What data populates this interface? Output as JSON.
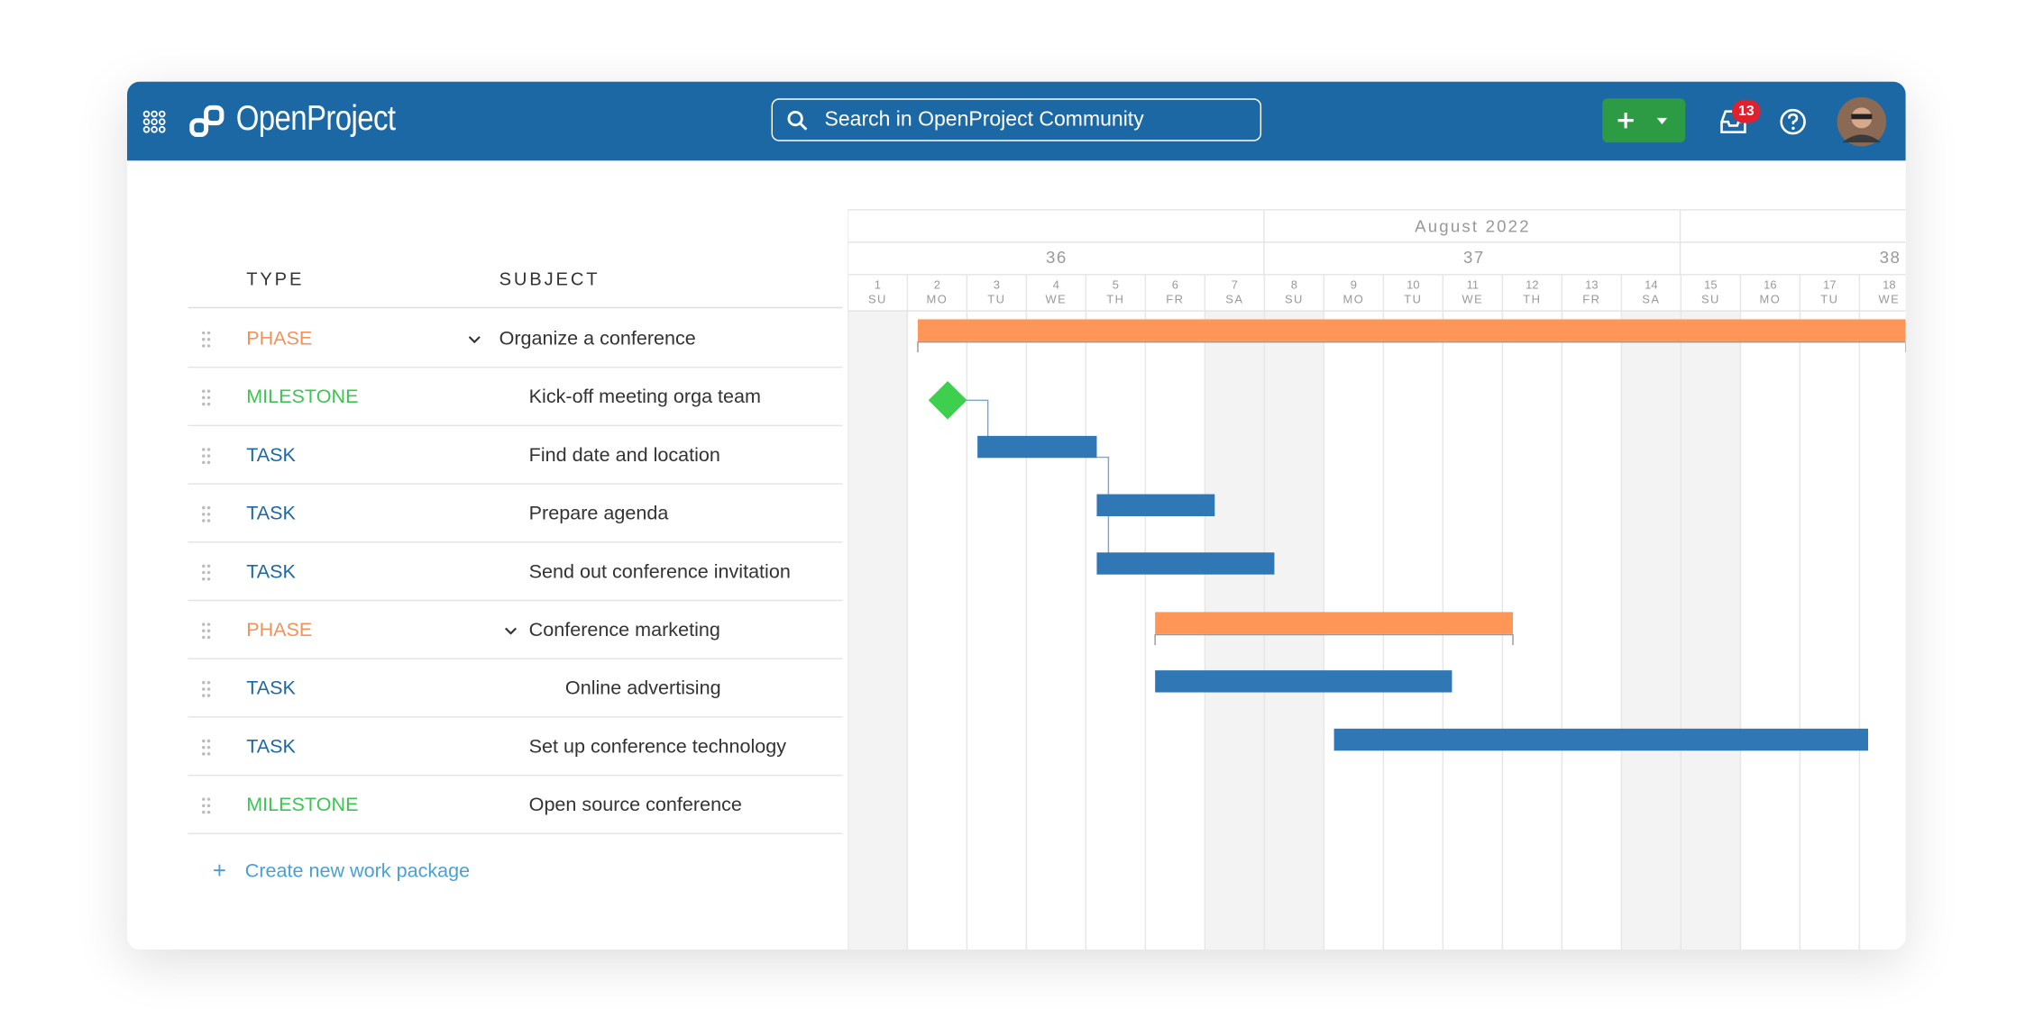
{
  "header": {
    "brand": "OpenProject",
    "search_placeholder": "Search in OpenProject Community",
    "notification_count": "13"
  },
  "table": {
    "columns": [
      "TYPE",
      "SUBJECT"
    ],
    "rows": [
      [
        "PHASE",
        "Organize a conference"
      ],
      [
        "MILESTONE",
        "Kick-off meeting orga team"
      ],
      [
        "TASK",
        "Find date and location"
      ],
      [
        "TASK",
        "Prepare agenda"
      ],
      [
        "TASK",
        "Send out conference invitation"
      ],
      [
        "PHASE",
        "Conference marketing"
      ],
      [
        "TASK",
        "Online advertising"
      ],
      [
        "TASK",
        "Set up conference technology"
      ],
      [
        "MILESTONE",
        "Open source conference"
      ]
    ],
    "create_link": "Create new work package"
  },
  "gantt": {
    "month": "August 2022",
    "weeks": [
      "36",
      "37",
      "38"
    ],
    "days": [
      [
        "1",
        "SU"
      ],
      [
        "2",
        "MO"
      ],
      [
        "3",
        "TU"
      ],
      [
        "4",
        "WE"
      ],
      [
        "5",
        "TH"
      ],
      [
        "6",
        "FR"
      ],
      [
        "7",
        "SA"
      ],
      [
        "8",
        "SU"
      ],
      [
        "9",
        "MO"
      ],
      [
        "10",
        "TU"
      ],
      [
        "11",
        "WE"
      ],
      [
        "12",
        "TH"
      ],
      [
        "13",
        "FR"
      ],
      [
        "14",
        "SA"
      ],
      [
        "15",
        "SU"
      ],
      [
        "16",
        "MO"
      ],
      [
        "17",
        "TU"
      ],
      [
        "18",
        "WE"
      ]
    ]
  }
}
